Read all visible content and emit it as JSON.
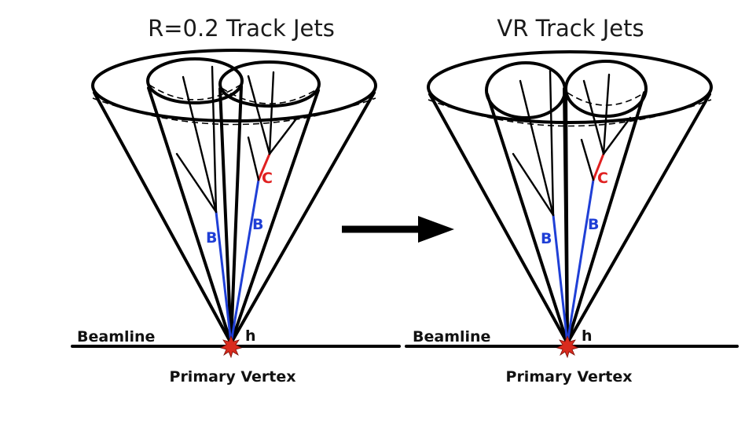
{
  "left_panel": {
    "title": "R=0.2 Track Jets",
    "beamline_label": "Beamline",
    "vertex_label": "Primary Vertex",
    "higgs_label": "h",
    "b_label_1": "B",
    "b_label_2": "B",
    "c_label": "C"
  },
  "right_panel": {
    "title": "VR Track Jets",
    "beamline_label": "Beamline",
    "vertex_label": "Primary Vertex",
    "higgs_label": "h",
    "b_label_1": "B",
    "b_label_2": "B",
    "c_label": "C"
  },
  "colors": {
    "b_hadron": "#1f3fd6",
    "c_hadron": "#e02020",
    "vertex": "#d92b1e",
    "line": "#000000"
  }
}
